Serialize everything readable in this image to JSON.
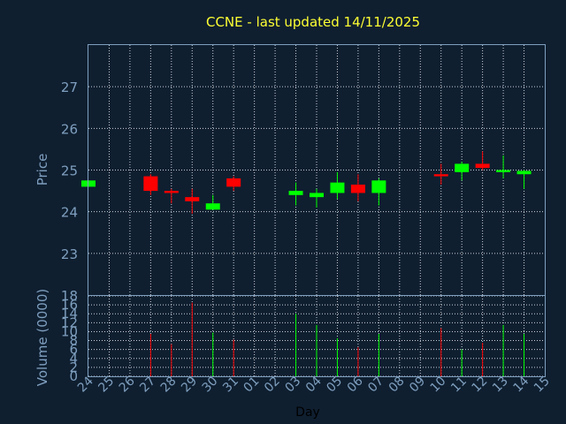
{
  "chart_data": {
    "title": "CCNE - last updated 14/11/2025",
    "colors": {
      "up": "#00ff00",
      "down": "#ff0000",
      "background": "#0f1f30",
      "axis": "#7f9fbf",
      "title": "#ffff33",
      "grid": "#c8d2dc"
    },
    "x_tick_labels": [
      "24",
      "25",
      "26",
      "27",
      "28",
      "29",
      "30",
      "31",
      "01",
      "02",
      "03",
      "04",
      "05",
      "06",
      "07",
      "08",
      "09",
      "10",
      "11",
      "12",
      "13",
      "14",
      "15"
    ],
    "xlabel": "Day",
    "price_panel": {
      "type": "candlestick",
      "ylabel": "Price",
      "ylim": [
        22,
        28
      ],
      "yticks": [
        23,
        24,
        25,
        26,
        27
      ],
      "grid": true,
      "candles": [
        {
          "day": "24",
          "open": 24.6,
          "high": 24.75,
          "low": 24.6,
          "close": 24.75
        },
        {
          "day": "27",
          "open": 24.85,
          "high": 24.9,
          "low": 24.4,
          "close": 24.5
        },
        {
          "day": "28",
          "open": 24.5,
          "high": 24.55,
          "low": 24.2,
          "close": 24.45
        },
        {
          "day": "29",
          "open": 24.35,
          "high": 24.55,
          "low": 23.95,
          "close": 24.25
        },
        {
          "day": "30",
          "open": 24.05,
          "high": 24.4,
          "low": 24.05,
          "close": 24.2
        },
        {
          "day": "31",
          "open": 24.8,
          "high": 24.85,
          "low": 24.5,
          "close": 24.6
        },
        {
          "day": "03",
          "open": 24.4,
          "high": 24.7,
          "low": 24.15,
          "close": 24.5
        },
        {
          "day": "04",
          "open": 24.35,
          "high": 24.55,
          "low": 24.1,
          "close": 24.45
        },
        {
          "day": "05",
          "open": 24.45,
          "high": 24.95,
          "low": 24.3,
          "close": 24.7
        },
        {
          "day": "06",
          "open": 24.65,
          "high": 24.9,
          "low": 24.25,
          "close": 24.45
        },
        {
          "day": "07",
          "open": 24.45,
          "high": 24.8,
          "low": 24.15,
          "close": 24.75
        },
        {
          "day": "10",
          "open": 24.9,
          "high": 25.15,
          "low": 24.65,
          "close": 24.85
        },
        {
          "day": "11",
          "open": 24.95,
          "high": 25.2,
          "low": 24.75,
          "close": 25.15
        },
        {
          "day": "12",
          "open": 25.15,
          "high": 25.45,
          "low": 25.0,
          "close": 25.05
        },
        {
          "day": "13",
          "open": 24.95,
          "high": 25.35,
          "low": 24.8,
          "close": 25.0
        },
        {
          "day": "14",
          "open": 24.9,
          "high": 25.0,
          "low": 24.55,
          "close": 24.98
        }
      ]
    },
    "volume_panel": {
      "type": "bar",
      "ylabel": "Volume (0000)",
      "ylim": [
        0,
        18
      ],
      "yticks": [
        0,
        2,
        4,
        6,
        8,
        10,
        12,
        14,
        16,
        18
      ],
      "grid": true,
      "volumes": [
        {
          "day": "27",
          "value": 9.5
        },
        {
          "day": "28",
          "value": 7.2
        },
        {
          "day": "29",
          "value": 16.5
        },
        {
          "day": "30",
          "value": 9.8
        },
        {
          "day": "31",
          "value": 8.2
        },
        {
          "day": "03",
          "value": 14.0
        },
        {
          "day": "04",
          "value": 11.5
        },
        {
          "day": "05",
          "value": 8.5
        },
        {
          "day": "06",
          "value": 6.5
        },
        {
          "day": "07",
          "value": 9.5
        },
        {
          "day": "10",
          "value": 10.8
        },
        {
          "day": "11",
          "value": 6.0
        },
        {
          "day": "12",
          "value": 7.5
        },
        {
          "day": "13",
          "value": 11.5
        },
        {
          "day": "14",
          "value": 9.5
        }
      ]
    }
  }
}
